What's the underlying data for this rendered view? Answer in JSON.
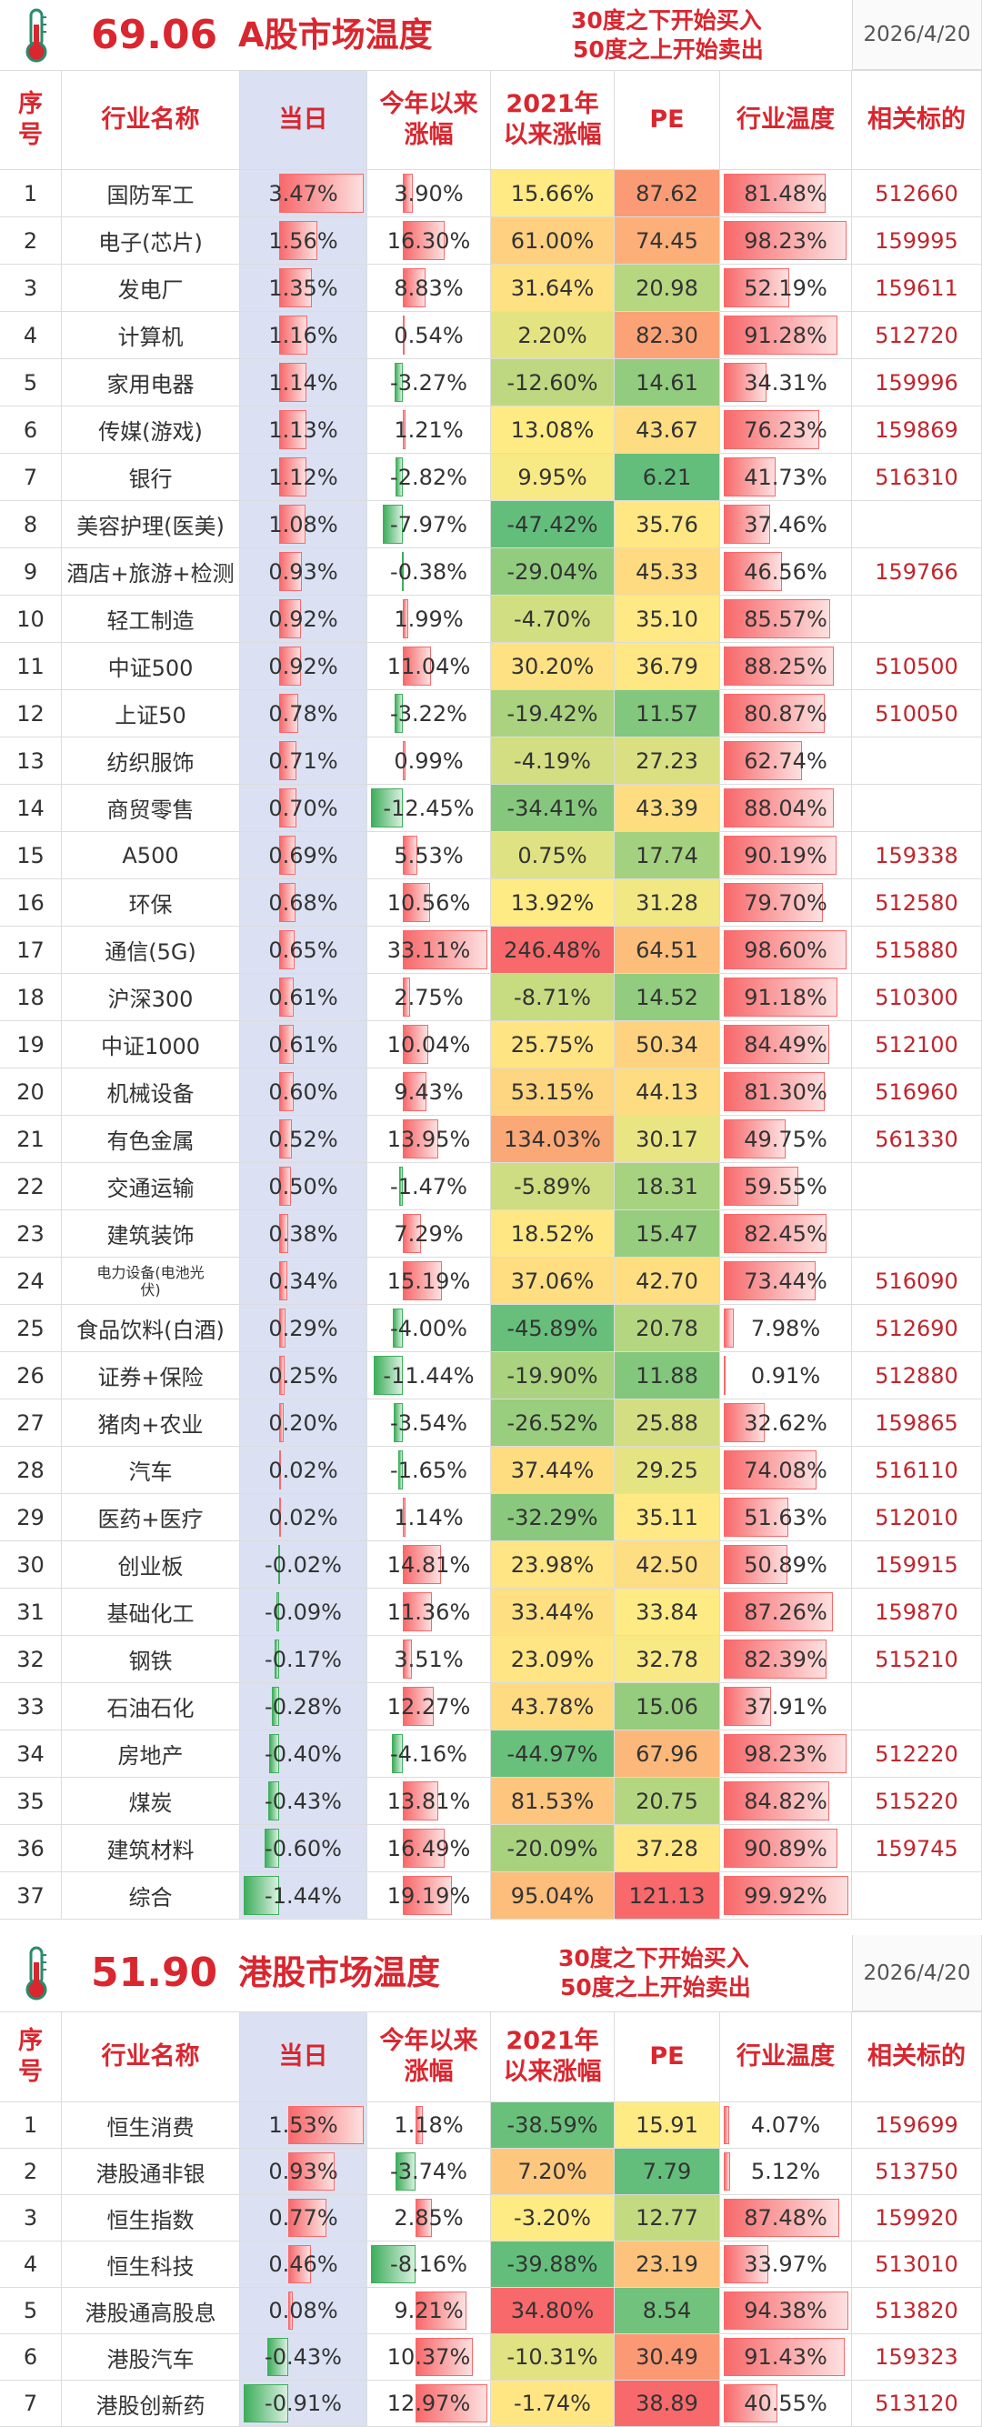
{
  "sections": [
    {
      "score": "69.06",
      "title": "A股市场温度",
      "rule_buy": "30度之下开始买入",
      "rule_sell": "50度之上开始卖出",
      "date": "2026/4/20",
      "columns": [
        [
          "序",
          "号"
        ],
        [
          "行业名称"
        ],
        [
          "当日"
        ],
        [
          "今年以来",
          "涨幅"
        ],
        [
          "2021年",
          "以来涨幅"
        ],
        [
          "PE"
        ],
        [
          "行业温度"
        ],
        [
          "相关标的"
        ]
      ],
      "rows": [
        [
          "1",
          "国防军工",
          "3.47%",
          "3.90%",
          "15.66%",
          "87.62",
          "81.48%",
          "512660"
        ],
        [
          "2",
          "电子(芯片)",
          "1.56%",
          "16.30%",
          "61.00%",
          "74.45",
          "98.23%",
          "159995"
        ],
        [
          "3",
          "发电厂",
          "1.35%",
          "8.83%",
          "31.64%",
          "20.98",
          "52.19%",
          "159611"
        ],
        [
          "4",
          "计算机",
          "1.16%",
          "0.54%",
          "2.20%",
          "82.30",
          "91.28%",
          "512720"
        ],
        [
          "5",
          "家用电器",
          "1.14%",
          "-3.27%",
          "-12.60%",
          "14.61",
          "34.31%",
          "159996"
        ],
        [
          "6",
          "传媒(游戏)",
          "1.13%",
          "1.21%",
          "13.08%",
          "43.67",
          "76.23%",
          "159869"
        ],
        [
          "7",
          "银行",
          "1.12%",
          "-2.82%",
          "9.95%",
          "6.21",
          "41.73%",
          "516310"
        ],
        [
          "8",
          "美容护理(医美)",
          "1.08%",
          "-7.97%",
          "-47.42%",
          "35.76",
          "37.46%",
          null
        ],
        [
          "9",
          "酒店+旅游+检测",
          "0.93%",
          "-0.38%",
          "-29.04%",
          "45.33",
          "46.56%",
          "159766"
        ],
        [
          "10",
          "轻工制造",
          "0.92%",
          "1.99%",
          "-4.70%",
          "35.10",
          "85.57%",
          null
        ],
        [
          "11",
          "中证500",
          "0.92%",
          "11.04%",
          "30.20%",
          "36.79",
          "88.25%",
          "510500"
        ],
        [
          "12",
          "上证50",
          "0.78%",
          "-3.22%",
          "-19.42%",
          "11.57",
          "80.87%",
          "510050"
        ],
        [
          "13",
          "纺织服饰",
          "0.71%",
          "0.99%",
          "-4.19%",
          "27.23",
          "62.74%",
          null
        ],
        [
          "14",
          "商贸零售",
          "0.70%",
          "-12.45%",
          "-34.41%",
          "43.39",
          "88.04%",
          null
        ],
        [
          "15",
          "A500",
          "0.69%",
          "5.53%",
          "0.75%",
          "17.74",
          "90.19%",
          "159338"
        ],
        [
          "16",
          "环保",
          "0.68%",
          "10.56%",
          "13.92%",
          "31.28",
          "79.70%",
          "512580"
        ],
        [
          "17",
          "通信(5G)",
          "0.65%",
          "33.11%",
          "246.48%",
          "64.51",
          "98.60%",
          "515880"
        ],
        [
          "18",
          "沪深300",
          "0.61%",
          "2.75%",
          "-8.71%",
          "14.52",
          "91.18%",
          "510300"
        ],
        [
          "19",
          "中证1000",
          "0.61%",
          "10.04%",
          "25.75%",
          "50.34",
          "84.49%",
          "512100"
        ],
        [
          "20",
          "机械设备",
          "0.60%",
          "9.43%",
          "53.15%",
          "44.13",
          "81.30%",
          "516960"
        ],
        [
          "21",
          "有色金属",
          "0.52%",
          "13.95%",
          "134.03%",
          "30.17",
          "49.75%",
          "561330"
        ],
        [
          "22",
          "交通运输",
          "0.50%",
          "-1.47%",
          "-5.89%",
          "18.31",
          "59.55%",
          null
        ],
        [
          "23",
          "建筑装饰",
          "0.38%",
          "7.29%",
          "18.52%",
          "15.47",
          "82.45%",
          null
        ],
        [
          "24",
          "电力设备(电池光伏)",
          "0.34%",
          "15.19%",
          "37.06%",
          "42.70",
          "73.44%",
          "516090"
        ],
        [
          "25",
          "食品饮料(白酒)",
          "0.29%",
          "-4.00%",
          "-45.89%",
          "20.78",
          "7.98%",
          "512690"
        ],
        [
          "26",
          "证券+保险",
          "0.25%",
          "-11.44%",
          "-19.90%",
          "11.88",
          "0.91%",
          "512880"
        ],
        [
          "27",
          "猪肉+农业",
          "0.20%",
          "-3.54%",
          "-26.52%",
          "25.88",
          "32.62%",
          "159865"
        ],
        [
          "28",
          "汽车",
          "0.02%",
          "-1.65%",
          "37.44%",
          "29.25",
          "74.08%",
          "516110"
        ],
        [
          "29",
          "医药+医疗",
          "0.02%",
          "1.14%",
          "-32.29%",
          "35.11",
          "51.63%",
          "512010"
        ],
        [
          "30",
          "创业板",
          "-0.02%",
          "14.81%",
          "23.98%",
          "42.50",
          "50.89%",
          "159915"
        ],
        [
          "31",
          "基础化工",
          "-0.09%",
          "11.36%",
          "33.44%",
          "33.84",
          "87.26%",
          "159870"
        ],
        [
          "32",
          "钢铁",
          "-0.17%",
          "3.51%",
          "23.09%",
          "32.78",
          "82.39%",
          "515210"
        ],
        [
          "33",
          "石油石化",
          "-0.28%",
          "12.27%",
          "43.78%",
          "15.06",
          "37.91%",
          null
        ],
        [
          "34",
          "房地产",
          "-0.40%",
          "-4.16%",
          "-44.97%",
          "67.96",
          "98.23%",
          "512220"
        ],
        [
          "35",
          "煤炭",
          "-0.43%",
          "13.81%",
          "81.53%",
          "20.75",
          "84.82%",
          "515220"
        ],
        [
          "36",
          "建筑材料",
          "-0.60%",
          "16.49%",
          "-20.09%",
          "37.28",
          "90.89%",
          "159745"
        ],
        [
          "37",
          "综合",
          "-1.44%",
          "19.19%",
          "95.04%",
          "121.13",
          "99.92%",
          null
        ]
      ]
    },
    {
      "score": "51.90",
      "title": "港股市场温度",
      "rule_buy": "30度之下开始买入",
      "rule_sell": "50度之上开始卖出",
      "date": "2026/4/20",
      "columns": [
        [
          "序",
          "号"
        ],
        [
          "行业名称"
        ],
        [
          "当日"
        ],
        [
          "今年以来",
          "涨幅"
        ],
        [
          "2021年",
          "以来涨幅"
        ],
        [
          "PE"
        ],
        [
          "行业温度"
        ],
        [
          "相关标的"
        ]
      ],
      "rows": [
        [
          "1",
          "恒生消费",
          "1.53%",
          "1.18%",
          "-38.59%",
          "15.91",
          "4.07%",
          "159699"
        ],
        [
          "2",
          "港股通非银",
          "0.93%",
          "-3.74%",
          "7.20%",
          "7.79",
          "5.12%",
          "513750"
        ],
        [
          "3",
          "恒生指数",
          "0.77%",
          "2.85%",
          "-3.20%",
          "12.77",
          "87.48%",
          "159920"
        ],
        [
          "4",
          "恒生科技",
          "0.46%",
          "-8.16%",
          "-39.88%",
          "23.19",
          "33.97%",
          "513010"
        ],
        [
          "5",
          "港股通高股息",
          "0.08%",
          "9.21%",
          "34.80%",
          "8.54",
          "94.38%",
          "513820"
        ],
        [
          "6",
          "港股汽车",
          "-0.43%",
          "10.37%",
          "-10.31%",
          "30.49",
          "91.43%",
          "159323"
        ],
        [
          "7",
          "港股创新药",
          "-0.91%",
          "12.97%",
          "-1.74%",
          "38.89",
          "40.55%",
          "513120"
        ]
      ]
    }
  ]
}
